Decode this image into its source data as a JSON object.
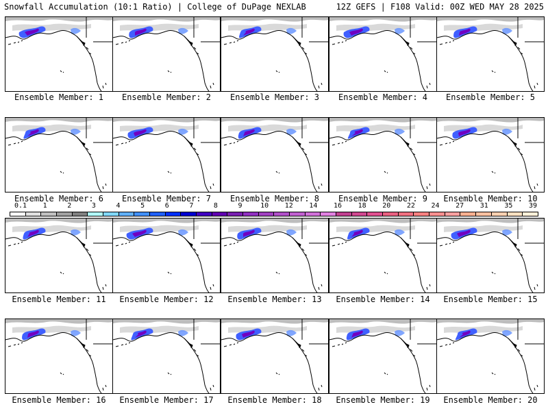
{
  "header": {
    "title_left": "Snowfall Accumulation (10:1 Ratio) | College of DuPage NEXLAB",
    "title_right": "12Z GEFS | F108 Valid: 00Z WED MAY 28 2025"
  },
  "members": [
    {
      "label": "Ensemble Member: 1"
    },
    {
      "label": "Ensemble Member: 2"
    },
    {
      "label": "Ensemble Member: 3"
    },
    {
      "label": "Ensemble Member: 4"
    },
    {
      "label": "Ensemble Member: 5"
    },
    {
      "label": "Ensemble Member: 6"
    },
    {
      "label": "Ensemble Member: 7"
    },
    {
      "label": "Ensemble Member: 8"
    },
    {
      "label": "Ensemble Member: 9"
    },
    {
      "label": "Ensemble Member: 10"
    },
    {
      "label": "Ensemble Member: 11"
    },
    {
      "label": "Ensemble Member: 12"
    },
    {
      "label": "Ensemble Member: 13"
    },
    {
      "label": "Ensemble Member: 14"
    },
    {
      "label": "Ensemble Member: 15"
    },
    {
      "label": "Ensemble Member: 16"
    },
    {
      "label": "Ensemble Member: 17"
    },
    {
      "label": "Ensemble Member: 18"
    },
    {
      "label": "Ensemble Member: 19"
    },
    {
      "label": "Ensemble Member: 20"
    }
  ],
  "colorbar": {
    "labels": [
      "0.1",
      "1",
      "2",
      "3",
      "4",
      "5",
      "6",
      "7",
      "8",
      "9",
      "10",
      "12",
      "14",
      "16",
      "18",
      "20",
      "22",
      "24",
      "27",
      "31",
      "35",
      "39"
    ],
    "colors": [
      "#ffffff",
      "#e0e0e0",
      "#c0c0c0",
      "#a0a0a0",
      "#808080",
      "#b0ffff",
      "#80d8ff",
      "#60b0ff",
      "#4090ff",
      "#2060ff",
      "#0030ff",
      "#0000d0",
      "#4000c0",
      "#6000b0",
      "#7820b0",
      "#9030c0",
      "#a040c0",
      "#b050c8",
      "#c060d0",
      "#d070d8",
      "#e080e0",
      "#c04090",
      "#d04890",
      "#e05090",
      "#e86080",
      "#f07080",
      "#f88080",
      "#ff9090",
      "#ffa0a0",
      "#ffb090",
      "#ffc0a0",
      "#ffd0b0",
      "#ffe0c0",
      "#fff0d8"
    ]
  }
}
